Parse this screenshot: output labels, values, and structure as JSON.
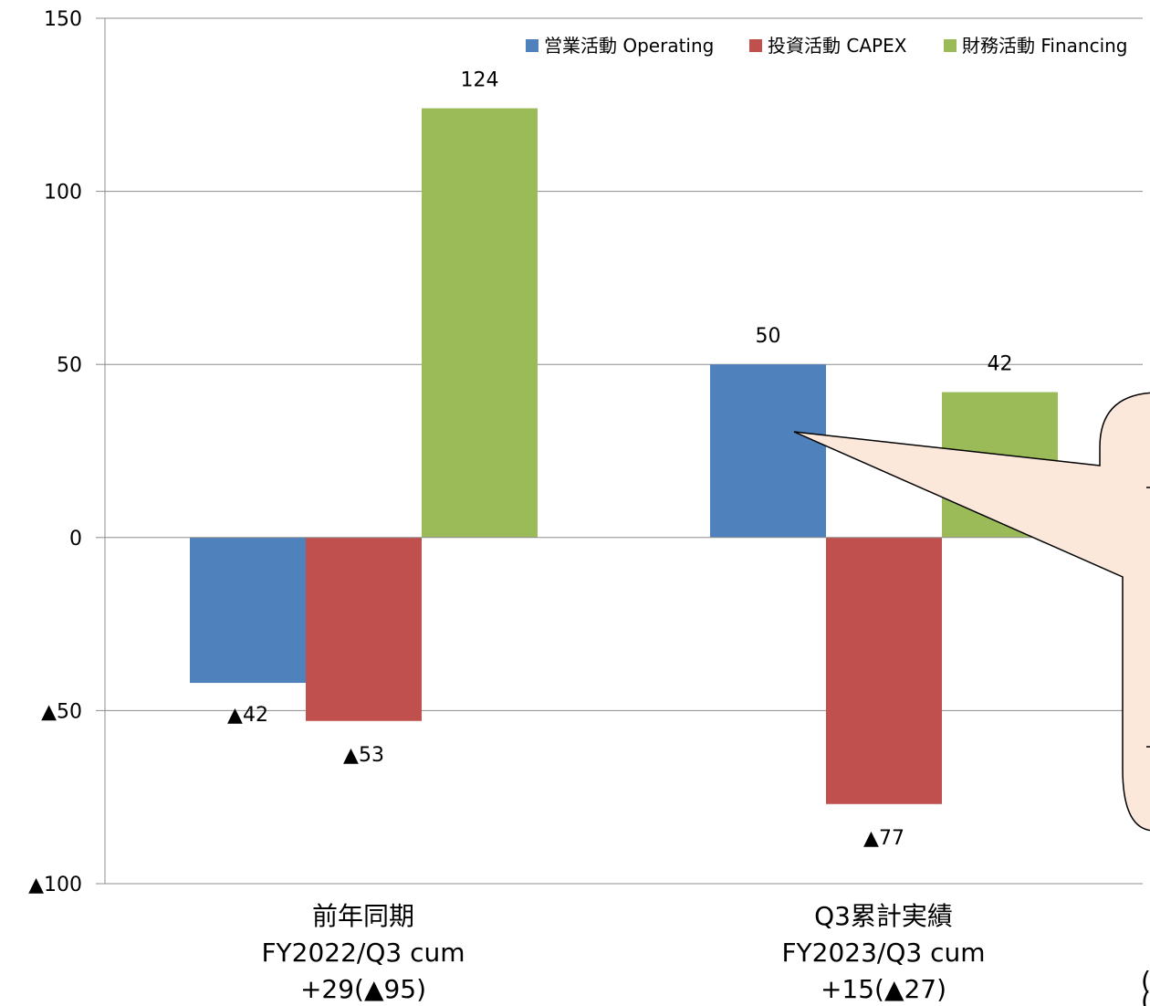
{
  "chart_data": {
    "type": "bar",
    "ylim": [
      -100,
      150
    ],
    "ytick_values": [
      150,
      100,
      50,
      0,
      -50,
      -100
    ],
    "ytick_labels": [
      "150",
      "100",
      "50",
      "0",
      "▲50",
      "▲100"
    ],
    "grid": true,
    "legend_position": "top-right",
    "categories": [
      {
        "line1": "前年同期",
        "line2": "FY2022/Q3 cum",
        "line3": "+29(▲95)"
      },
      {
        "line1": "Q3累計実績",
        "line2": "FY2023/Q3 cum",
        "line3": "+15(▲27)"
      }
    ],
    "series": [
      {
        "name": "営業活動 Operating",
        "color": "#4f81bd",
        "values": [
          -42,
          50
        ],
        "labels": [
          "▲42",
          "50"
        ]
      },
      {
        "name": "投資活動 CAPEX",
        "color": "#c0504d",
        "values": [
          -53,
          -77
        ],
        "labels": [
          "▲53",
          "▲77"
        ]
      },
      {
        "name": "財務活動 Financing",
        "color": "#9bbb59",
        "values": [
          124,
          42
        ],
        "labels": [
          "124",
          "42"
        ]
      }
    ]
  },
  "callout": {
    "fill": "#fce8db",
    "stroke": "#000000"
  },
  "edge_fragments": [
    "(",
    "("
  ]
}
